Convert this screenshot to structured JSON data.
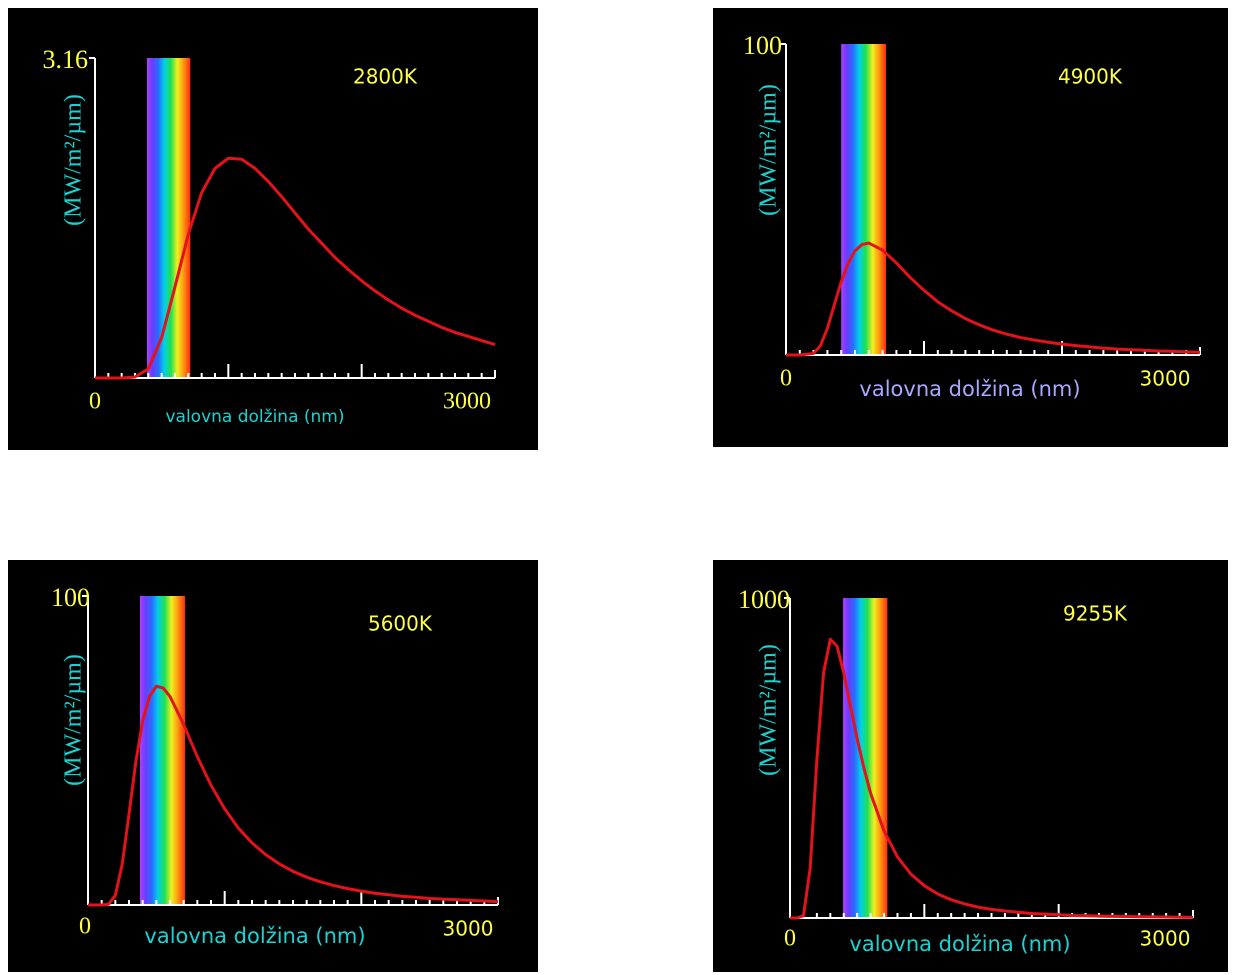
{
  "chart_data": [
    {
      "type": "line",
      "title": "2800K",
      "x_label": "valovna dolžina (nm)",
      "y_label": "(MW/m²/µm)",
      "color": "#e3121b",
      "x": [
        0,
        100,
        200,
        300,
        400,
        500,
        600,
        700,
        800,
        900,
        1000,
        1100,
        1200,
        1300,
        1400,
        1500,
        1600,
        1700,
        1800,
        1900,
        2000,
        2100,
        2200,
        2300,
        2400,
        2500,
        2600,
        2700,
        2800,
        2900,
        3000
      ],
      "values": [
        0,
        0,
        0,
        0.01,
        0.09,
        0.4,
        0.9,
        1.42,
        1.83,
        2.07,
        2.17,
        2.16,
        2.07,
        1.94,
        1.79,
        1.63,
        1.47,
        1.33,
        1.19,
        1.07,
        0.96,
        0.86,
        0.77,
        0.69,
        0.62,
        0.56,
        0.5,
        0.45,
        0.41,
        0.37,
        0.33
      ],
      "xlim": [
        0,
        3000
      ],
      "ylim": [
        0,
        3.16
      ],
      "xticks": [
        0,
        3000
      ],
      "yticks": [
        3.16
      ],
      "x_major_ticks": [
        1000,
        2000
      ],
      "x_minor_ticks": [
        100,
        200,
        300,
        400,
        500,
        600,
        700,
        800,
        900,
        1100,
        1200,
        1300,
        1400,
        1500,
        1600,
        1700,
        1800,
        1900,
        2100,
        2200,
        2300,
        2400,
        2500,
        2600,
        2700,
        2800,
        2900
      ],
      "spectrum": [
        390,
        715
      ]
    },
    {
      "type": "line",
      "title": "4900K",
      "x_label": "valovna dolžina (nm)",
      "y_label": "(MW/m²/µm)",
      "color": "#e3121b",
      "x": [
        0,
        100,
        200,
        250,
        300,
        350,
        400,
        450,
        500,
        550,
        600,
        700,
        800,
        900,
        1000,
        1100,
        1200,
        1300,
        1400,
        1500,
        1600,
        1700,
        1800,
        1900,
        2000,
        2100,
        2200,
        2300,
        2400,
        2500,
        2600,
        2700,
        2800,
        2900,
        3000
      ],
      "values": [
        0,
        0,
        0.5,
        3.0,
        8.6,
        16.1,
        23.5,
        29.5,
        33.5,
        35.5,
        36,
        33.7,
        29.6,
        24.9,
        20.8,
        17.1,
        14.2,
        11.7,
        9.7,
        8.0,
        6.7,
        5.6,
        4.8,
        4.1,
        3.5,
        3.0,
        2.6,
        2.2,
        1.9,
        1.7,
        1.5,
        1.3,
        1.2,
        1.0,
        0.9
      ],
      "xlim": [
        0,
        3000
      ],
      "ylim": [
        0,
        100
      ],
      "xticks": [
        0,
        3000
      ],
      "yticks": [
        100
      ],
      "x_major_ticks": [
        1000,
        2000
      ],
      "x_minor_ticks": [
        100,
        200,
        300,
        400,
        500,
        600,
        700,
        800,
        900,
        1100,
        1200,
        1300,
        1400,
        1500,
        1600,
        1700,
        1800,
        1900,
        2100,
        2200,
        2300,
        2400,
        2500,
        2600,
        2700,
        2800,
        2900
      ],
      "spectrum": [
        400,
        725
      ]
    },
    {
      "type": "line",
      "title": "5600K",
      "x_label": "valovna dolžina (nm)",
      "y_label": "(MW/m²/µm)",
      "color": "#e3121b",
      "x": [
        0,
        100,
        150,
        200,
        250,
        300,
        350,
        400,
        450,
        500,
        550,
        600,
        700,
        800,
        900,
        1000,
        1100,
        1200,
        1300,
        1400,
        1500,
        1600,
        1700,
        1800,
        1900,
        2000,
        2100,
        2200,
        2300,
        2400,
        2500,
        2600,
        2700,
        2800,
        2900,
        3000
      ],
      "values": [
        0,
        0,
        0.2,
        3.1,
        13.1,
        29.4,
        46.3,
        59.6,
        67.5,
        70.8,
        70.2,
        67.5,
        58.4,
        48.0,
        38.8,
        31.1,
        24.9,
        20.1,
        16.3,
        13.3,
        10.9,
        9.0,
        7.5,
        6.3,
        5.3,
        4.5,
        3.8,
        3.3,
        2.8,
        2.5,
        2.1,
        1.9,
        1.7,
        1.5,
        1.3,
        1.1
      ],
      "xlim": [
        0,
        3000
      ],
      "ylim": [
        0,
        100
      ],
      "xticks": [
        0,
        3000
      ],
      "yticks": [
        100
      ],
      "x_major_ticks": [
        1000,
        2000
      ],
      "x_minor_ticks": [
        100,
        200,
        300,
        400,
        500,
        600,
        700,
        800,
        900,
        1100,
        1200,
        1300,
        1400,
        1500,
        1600,
        1700,
        1800,
        1900,
        2100,
        2200,
        2300,
        2400,
        2500,
        2600,
        2700,
        2800,
        2900
      ],
      "spectrum": [
        380,
        710
      ]
    },
    {
      "type": "line",
      "title": "9255K",
      "x_label": "valovna dolžina (nm)",
      "y_label": "(MW/m²/µm)",
      "color": "#e3121b",
      "x": [
        0,
        50,
        100,
        150,
        200,
        250,
        300,
        350,
        400,
        450,
        500,
        550,
        600,
        700,
        800,
        900,
        1000,
        1100,
        1200,
        1300,
        1400,
        1500,
        1600,
        1700,
        1800,
        1900,
        2000,
        2100,
        2200,
        2300,
        2400,
        2500,
        2600,
        2700,
        2800,
        2900,
        3000
      ],
      "values": [
        0,
        0,
        6.7,
        155,
        494,
        767,
        871,
        850,
        766,
        662,
        560,
        469,
        390,
        272,
        191,
        137,
        101,
        75,
        57,
        44,
        34,
        27,
        22,
        18,
        14,
        12,
        10,
        8,
        7,
        6,
        5,
        4.5,
        4,
        3.5,
        3,
        2.5,
        2
      ],
      "xlim": [
        0,
        3000
      ],
      "ylim": [
        0,
        1000
      ],
      "xticks": [
        0,
        3000
      ],
      "yticks": [
        1000
      ],
      "x_major_ticks": [
        1000,
        2000
      ],
      "x_minor_ticks": [
        100,
        200,
        300,
        400,
        500,
        600,
        700,
        800,
        900,
        1100,
        1200,
        1300,
        1400,
        1500,
        1600,
        1700,
        1800,
        1900,
        2100,
        2200,
        2300,
        2400,
        2500,
        2600,
        2700,
        2800,
        2900
      ],
      "spectrum": [
        395,
        725
      ]
    }
  ]
}
